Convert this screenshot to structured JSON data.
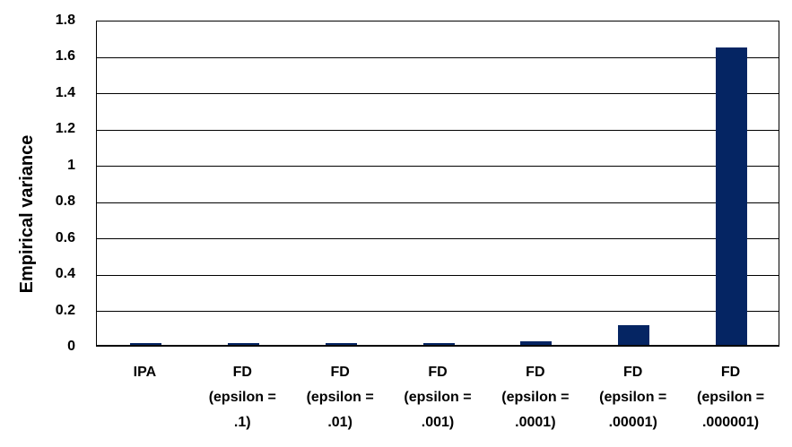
{
  "chart_data": {
    "type": "bar",
    "title": "",
    "xlabel": "",
    "ylabel": "Empirical variance",
    "ylim": [
      0,
      1.8
    ],
    "grid": true,
    "legend": false,
    "bar_color": "#052563",
    "gridline_color": "#000000",
    "axis_color": "#000000",
    "text_color": "#000000",
    "background_color": "#ffffff",
    "yticks": [
      {
        "value": 0,
        "label": "0"
      },
      {
        "value": 0.2,
        "label": "0.2"
      },
      {
        "value": 0.4,
        "label": "0.4"
      },
      {
        "value": 0.6,
        "label": "0.6"
      },
      {
        "value": 0.8,
        "label": "0.8"
      },
      {
        "value": 1,
        "label": "1"
      },
      {
        "value": 1.2,
        "label": "1.2"
      },
      {
        "value": 1.4,
        "label": "1.4"
      },
      {
        "value": 1.6,
        "label": "1.6"
      },
      {
        "value": 1.8,
        "label": "1.8"
      }
    ],
    "categories": [
      {
        "label": "IPA",
        "lines": [
          "IPA"
        ],
        "value": 0.01
      },
      {
        "label": "FD (epsilon = .1)",
        "lines": [
          "FD",
          "(epsilon =",
          ".1)"
        ],
        "value": 0.01
      },
      {
        "label": "FD (epsilon = .01)",
        "lines": [
          "FD",
          "(epsilon =",
          ".01)"
        ],
        "value": 0.01
      },
      {
        "label": "FD (epsilon = .001)",
        "lines": [
          "FD",
          "(epsilon =",
          ".001)"
        ],
        "value": 0.01
      },
      {
        "label": "FD (epsilon = .0001)",
        "lines": [
          "FD",
          "(epsilon =",
          ".0001)"
        ],
        "value": 0.02
      },
      {
        "label": "FD (epsilon = .00001)",
        "lines": [
          "FD",
          "(epsilon =",
          ".00001)"
        ],
        "value": 0.11
      },
      {
        "label": "FD (epsilon = .000001)",
        "lines": [
          "FD",
          "(epsilon =",
          ".000001)"
        ],
        "value": 1.64
      }
    ]
  }
}
